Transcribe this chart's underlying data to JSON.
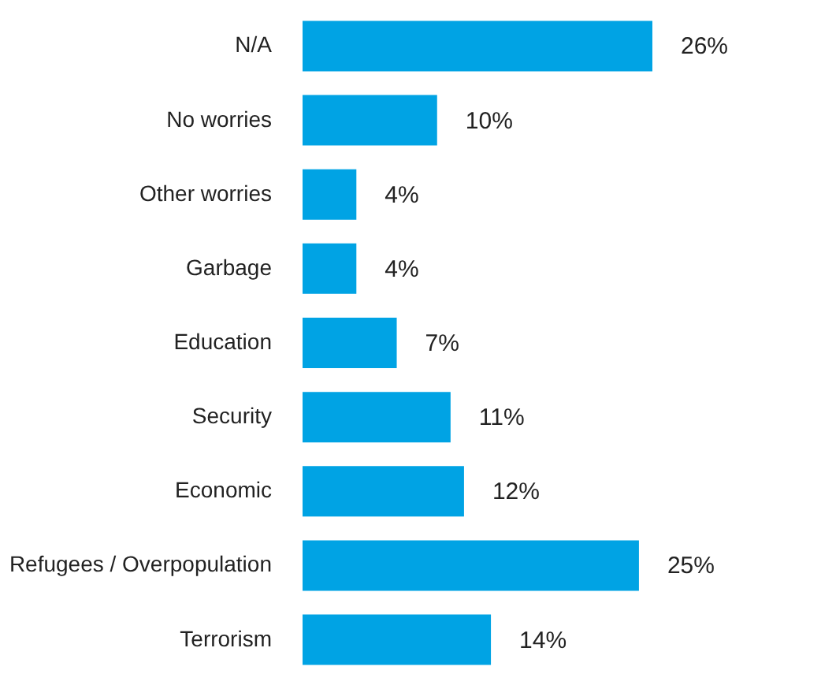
{
  "chart_data": {
    "type": "bar",
    "orientation": "horizontal",
    "categories": [
      "N/A",
      "No worries",
      "Other worries",
      "Garbage",
      "Education",
      "Security",
      "Economic",
      "Refugees / Overpopulation",
      "Terrorism"
    ],
    "values": [
      26,
      10,
      4,
      4,
      7,
      11,
      12,
      25,
      14
    ],
    "value_labels": [
      "26%",
      "10%",
      "4%",
      "4%",
      "7%",
      "11%",
      "12%",
      "25%",
      "14%"
    ],
    "color": "#00a3e4"
  }
}
